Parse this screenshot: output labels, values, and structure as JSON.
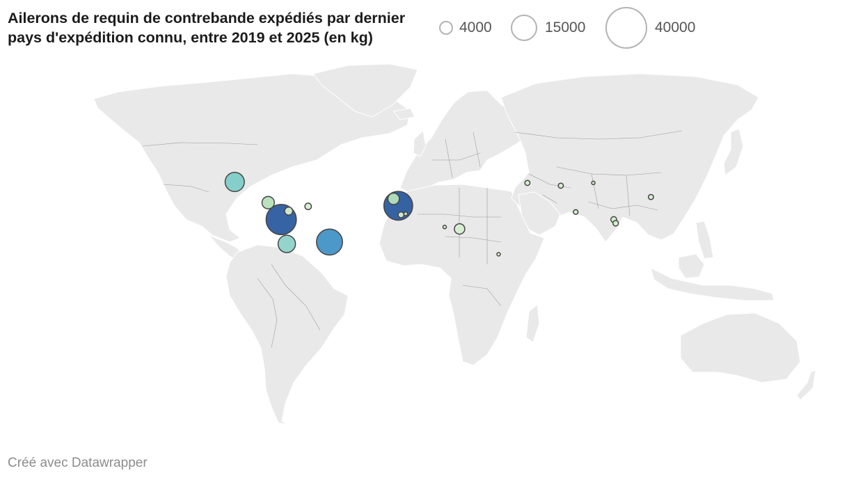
{
  "header": {
    "title": "Ailerons de requin de contrebande expédiés par dernier pays d'expédition connu, entre 2019 et 2025 (en kg)"
  },
  "legend": {
    "items": [
      {
        "label": "4000",
        "value": 4000
      },
      {
        "label": "15000",
        "value": 15000
      },
      {
        "label": "40000",
        "value": 40000
      }
    ]
  },
  "footer": {
    "credit": "Créé avec Datawrapper"
  },
  "colors": {
    "land": "#e9e9e9",
    "border": "#9a9a9a",
    "bubble_stroke": "#454545",
    "legend_stroke": "#b3b3b3",
    "scale": [
      "#d6eed0",
      "#b5e1bb",
      "#8dd3c7",
      "#7ecdc8",
      "#4292c6",
      "#2b5b9e"
    ]
  },
  "chart_data": {
    "type": "proportional-symbol-map",
    "size_unit": "kg",
    "points": [
      {
        "lon": -102.5,
        "lat": 23.5,
        "kg": 8500,
        "color": "#7ecdc8"
      },
      {
        "lon": -84.5,
        "lat": 12.5,
        "kg": 3500,
        "color": "#b5e1bb"
      },
      {
        "lon": -77.5,
        "lat": 3.5,
        "kg": 21000,
        "color": "#2b5b9e"
      },
      {
        "lon": -73.5,
        "lat": 8.0,
        "kg": 1500,
        "color": "#d6eed0"
      },
      {
        "lon": -63.0,
        "lat": 10.5,
        "kg": 1000,
        "color": "#d6eed0"
      },
      {
        "lon": -74.5,
        "lat": -9.5,
        "kg": 7000,
        "color": "#8dd3c7"
      },
      {
        "lon": -51.5,
        "lat": -8.5,
        "kg": 15500,
        "color": "#4292c6"
      },
      {
        "lon": -14.5,
        "lat": 10.8,
        "kg": 19000,
        "color": "#2b5b9e"
      },
      {
        "lon": -17.0,
        "lat": 14.5,
        "kg": 3000,
        "color": "#b5e1bb"
      },
      {
        "lon": -13.0,
        "lat": 6.0,
        "kg": 800,
        "color": "#d6eed0"
      },
      {
        "lon": -10.5,
        "lat": 6.5,
        "kg": 300,
        "color": "#d6eed0"
      },
      {
        "lon": 10.5,
        "lat": -0.5,
        "kg": 200,
        "color": "#d6eed0"
      },
      {
        "lon": 18.5,
        "lat": -1.5,
        "kg": 2500,
        "color": "#d6eed0"
      },
      {
        "lon": 39.5,
        "lat": -15.0,
        "kg": 100,
        "color": "#d6eed0"
      },
      {
        "lon": 55.0,
        "lat": 23.0,
        "kg": 600,
        "color": "#d6eed0"
      },
      {
        "lon": 73.0,
        "lat": 21.5,
        "kg": 600,
        "color": "#d6eed0"
      },
      {
        "lon": 81.0,
        "lat": 7.5,
        "kg": 500,
        "color": "#d6eed0"
      },
      {
        "lon": 90.5,
        "lat": 23.0,
        "kg": 100,
        "color": "#d6eed0"
      },
      {
        "lon": 121.5,
        "lat": 15.5,
        "kg": 600,
        "color": "#d6eed0"
      },
      {
        "lon": 101.5,
        "lat": 3.5,
        "kg": 800,
        "color": "#d6eed0"
      },
      {
        "lon": 102.5,
        "lat": 1.5,
        "kg": 700,
        "color": "#d6eed0"
      }
    ]
  }
}
